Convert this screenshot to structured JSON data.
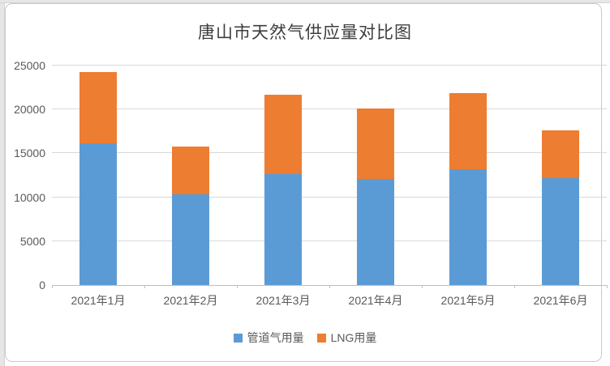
{
  "chart_data": {
    "type": "bar",
    "stacked": true,
    "title": "唐山市天然气供应量对比图",
    "categories": [
      "2021年1月",
      "2021年2月",
      "2021年3月",
      "2021年4月",
      "2021年5月",
      "2021年6月"
    ],
    "series": [
      {
        "name": "管道气用量",
        "color": "#5B9BD5",
        "values": [
          16100,
          10350,
          12600,
          12100,
          13200,
          12200
        ]
      },
      {
        "name": "LNG用量",
        "color": "#ED7D31",
        "values": [
          8150,
          5400,
          9100,
          8050,
          8700,
          5450
        ]
      }
    ],
    "totals": [
      24250,
      15750,
      21700,
      20150,
      21900,
      17650
    ],
    "ylim": [
      0,
      25000
    ],
    "yticks": [
      0,
      5000,
      10000,
      15000,
      20000,
      25000
    ],
    "grid": true,
    "legend_position": "bottom",
    "colors": {
      "gridline": "#d9d9d9",
      "axis_line": "#bfbfbf",
      "axis_label": "#595959",
      "title": "#3d3d3d",
      "frame_border": "#c9c9c9",
      "page_edge": "#e6e6e6"
    }
  }
}
